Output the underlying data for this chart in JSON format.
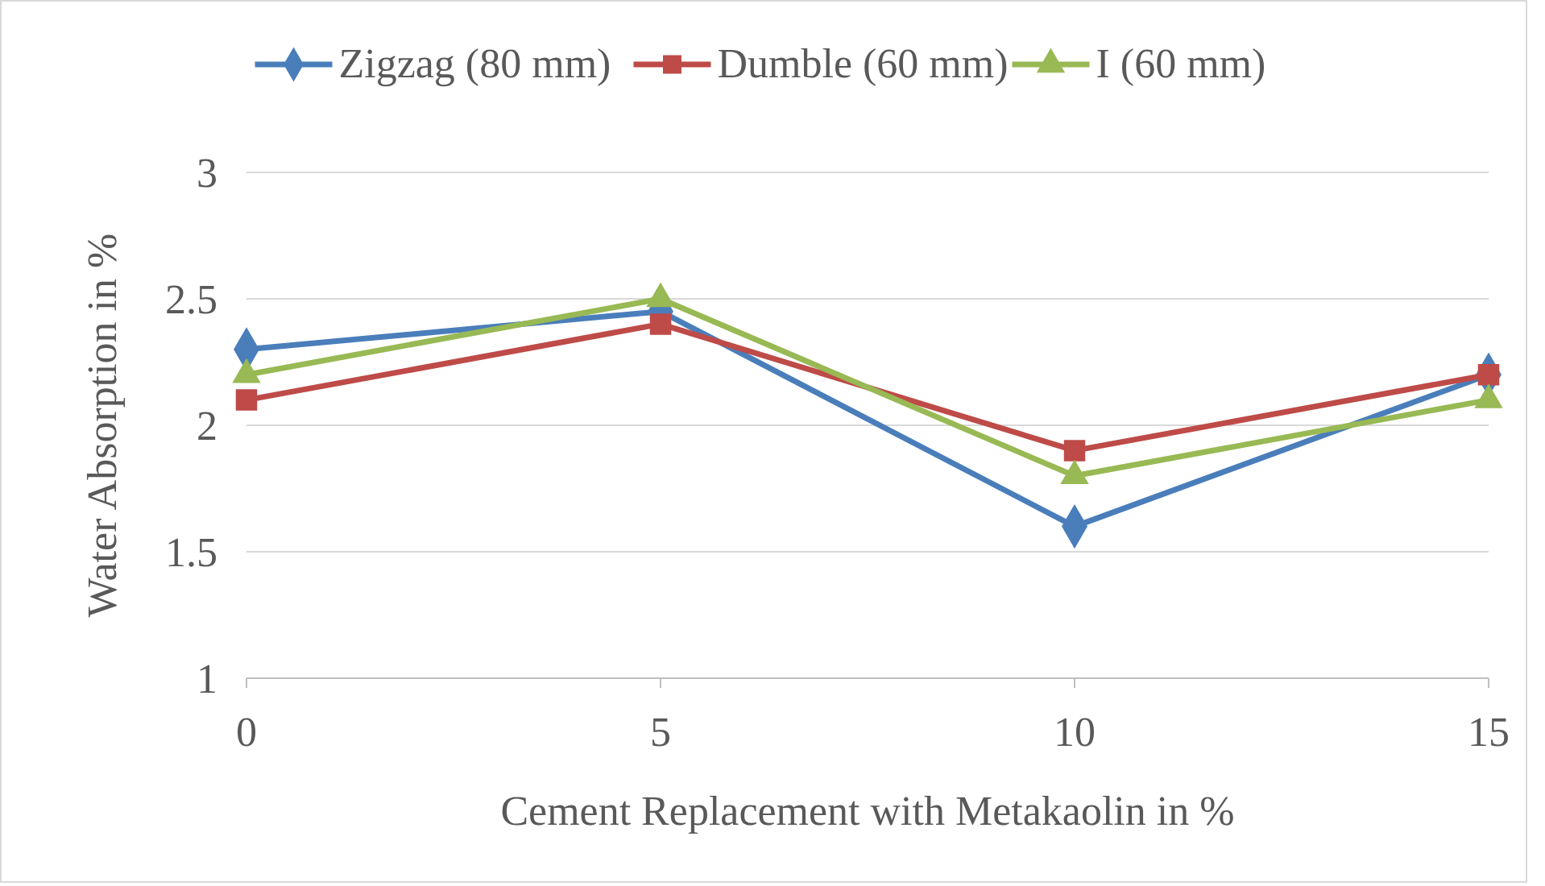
{
  "chart_data": {
    "type": "line",
    "xlabel": "Cement Replacement with Metakaolin in %",
    "ylabel": "Water Absorption in %",
    "x": [
      0,
      5,
      10,
      15
    ],
    "xlim": [
      0,
      15
    ],
    "xticks": [
      0,
      5,
      10,
      15
    ],
    "ylim": [
      1,
      3
    ],
    "yticks": [
      1,
      1.5,
      2,
      2.5,
      3
    ],
    "grid": "y",
    "legend": "top",
    "series": [
      {
        "name": "Zigzag (80 mm)",
        "color": "#4a7ebb",
        "marker": "diamond",
        "values": [
          2.3,
          2.45,
          1.6,
          2.2
        ]
      },
      {
        "name": "Dumble (60 mm)",
        "color": "#be4b48",
        "marker": "square",
        "values": [
          2.1,
          2.4,
          1.9,
          2.2
        ]
      },
      {
        "name": "I (60 mm)",
        "color": "#98b954",
        "marker": "triangle",
        "values": [
          2.2,
          2.5,
          1.8,
          2.1
        ]
      }
    ]
  }
}
